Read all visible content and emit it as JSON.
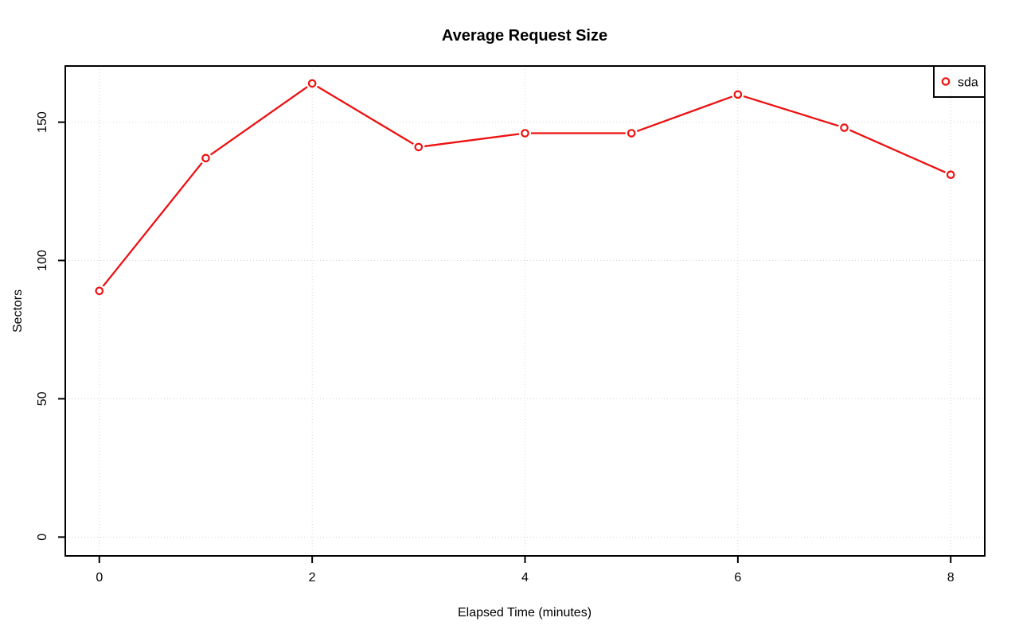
{
  "page": {
    "background": "#FFFFFF"
  },
  "chart_data": {
    "type": "line",
    "title": "Average Request Size",
    "xlabel": "Elapsed Time (minutes)",
    "ylabel": "Sectors",
    "x": [
      0,
      1,
      2,
      3,
      4,
      5,
      6,
      7,
      8
    ],
    "series": [
      {
        "name": "sda",
        "color": "#EE1111",
        "marker": "open-circle",
        "values": [
          89,
          137,
          164,
          141,
          146,
          146,
          160,
          148,
          131
        ]
      }
    ],
    "xticks": [
      "0",
      "2",
      "4",
      "6",
      "8"
    ],
    "xtick_values": [
      0,
      2,
      4,
      6,
      8
    ],
    "yticks": [
      "0",
      "50",
      "100",
      "150"
    ],
    "ytick_values": [
      0,
      50,
      100,
      150
    ],
    "xlim": [
      -0.32,
      8.32
    ],
    "ylim": [
      -6.8,
      170.3
    ],
    "grid": true,
    "grid_style": "dotted",
    "grid_color": "#D3D3D3",
    "axis_color": "#000000",
    "legend": {
      "position": "top-right",
      "entries": [
        "sda"
      ]
    }
  }
}
